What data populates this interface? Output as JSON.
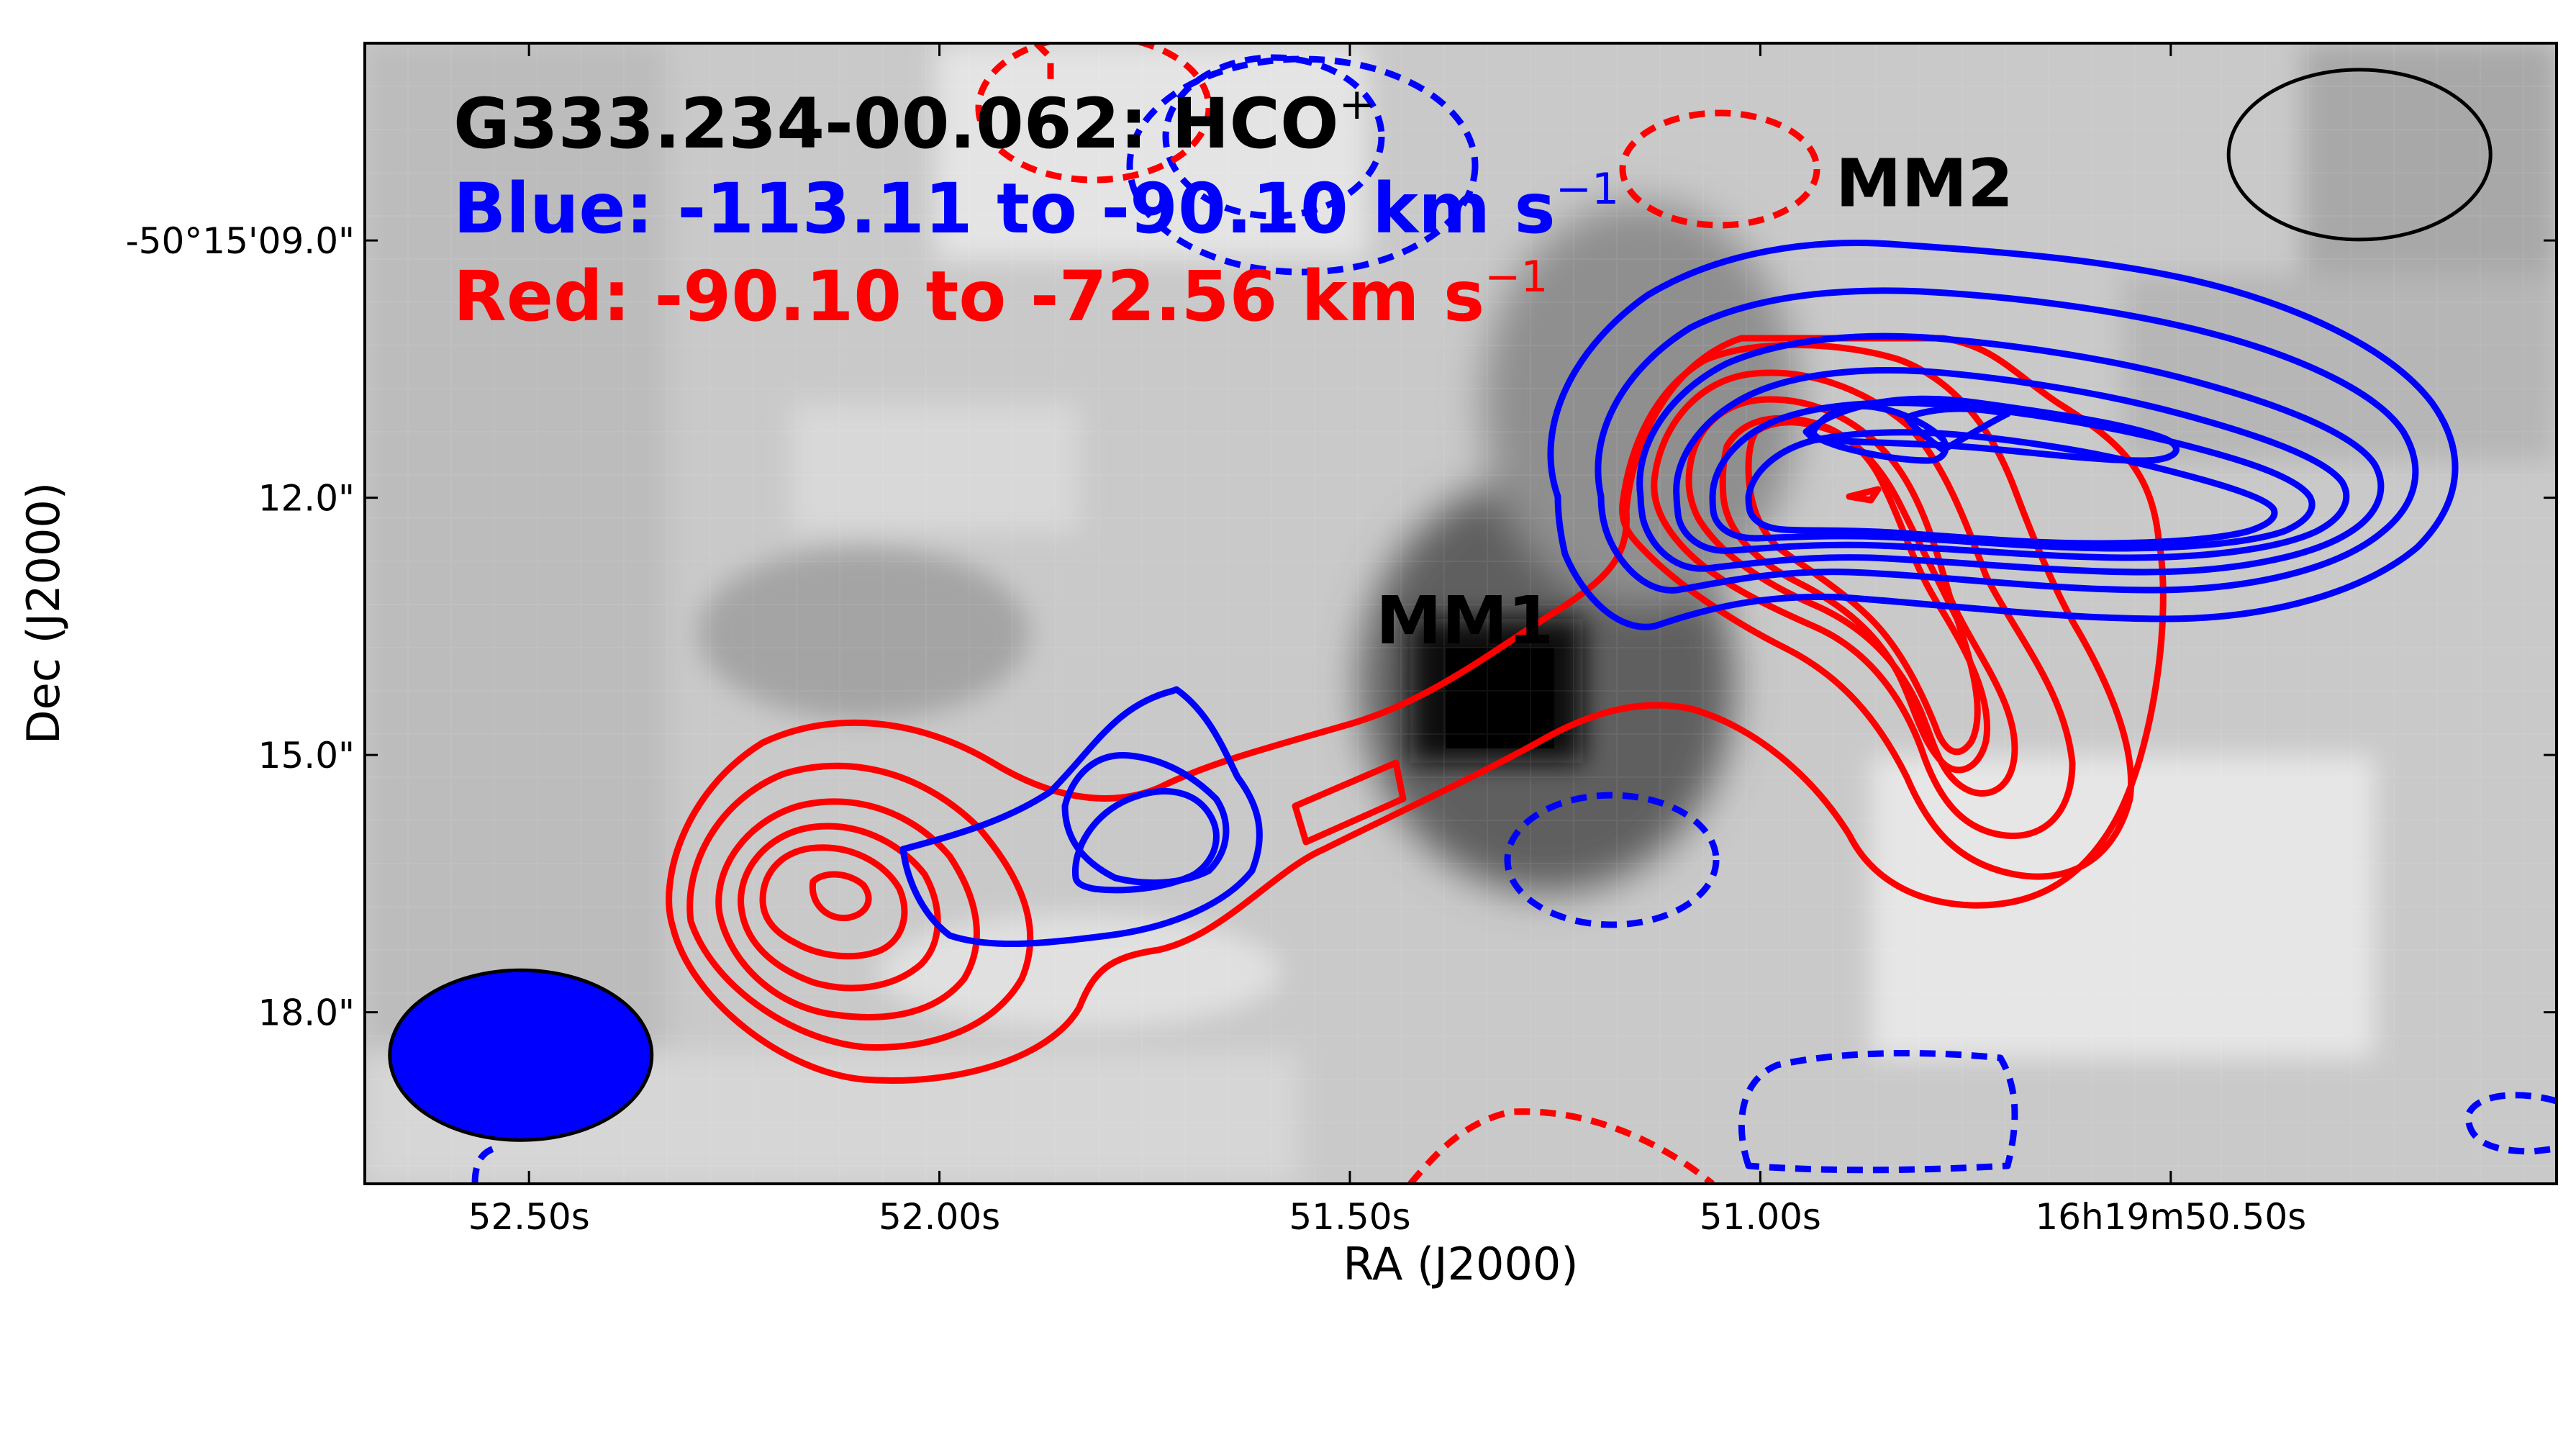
{
  "chart_data": {
    "type": "contour",
    "title_lines": [
      {
        "text": "G333.234-00.062: HCO",
        "sup": "+",
        "color": "#000000"
      },
      {
        "text": "Blue: -113.11 to -90.10 km s",
        "sup": "−1",
        "color": "#0000ff"
      },
      {
        "text": "Red: -90.10 to -72.56 km s",
        "sup": "−1",
        "color": "#ff0000"
      }
    ],
    "xlabel": "RA (J2000)",
    "ylabel": "Dec (J2000)",
    "xticks": [
      "52.50s",
      "52.00s",
      "51.50s",
      "51.00s",
      "16h19m50.50s"
    ],
    "xtick_values": [
      52.5,
      52.0,
      51.5,
      51.0,
      50.5
    ],
    "yticks": [
      "-50°15'09.0\"",
      "12.0\"",
      "15.0\"",
      "18.0\""
    ],
    "ytick_values": [
      9.0,
      12.0,
      15.0,
      18.0
    ],
    "xlim": [
      52.7,
      50.03
    ],
    "ylim": [
      6.7,
      20.0
    ],
    "grid": false,
    "sources": [
      {
        "name": "MM1",
        "ra_s": 51.36,
        "dec_s": 13.7
      },
      {
        "name": "MM2",
        "ra_s": 50.8,
        "dec_s": 8.6
      }
    ],
    "beams": [
      {
        "name": "blue beam",
        "ra_s": 52.51,
        "dec_s": 18.5,
        "color": "#0000ff",
        "filled": true
      },
      {
        "name": "red beam",
        "ra_s": 50.27,
        "dec_s": 8.0,
        "color": "#000000",
        "filled": false
      }
    ],
    "series": [
      {
        "name": "Blue",
        "color": "#0000ff",
        "velocity_range": "-113.11 to -90.10 km s−1"
      },
      {
        "name": "Red",
        "color": "#ff0000",
        "velocity_range": "-90.10 to -72.56 km s−1"
      }
    ]
  }
}
